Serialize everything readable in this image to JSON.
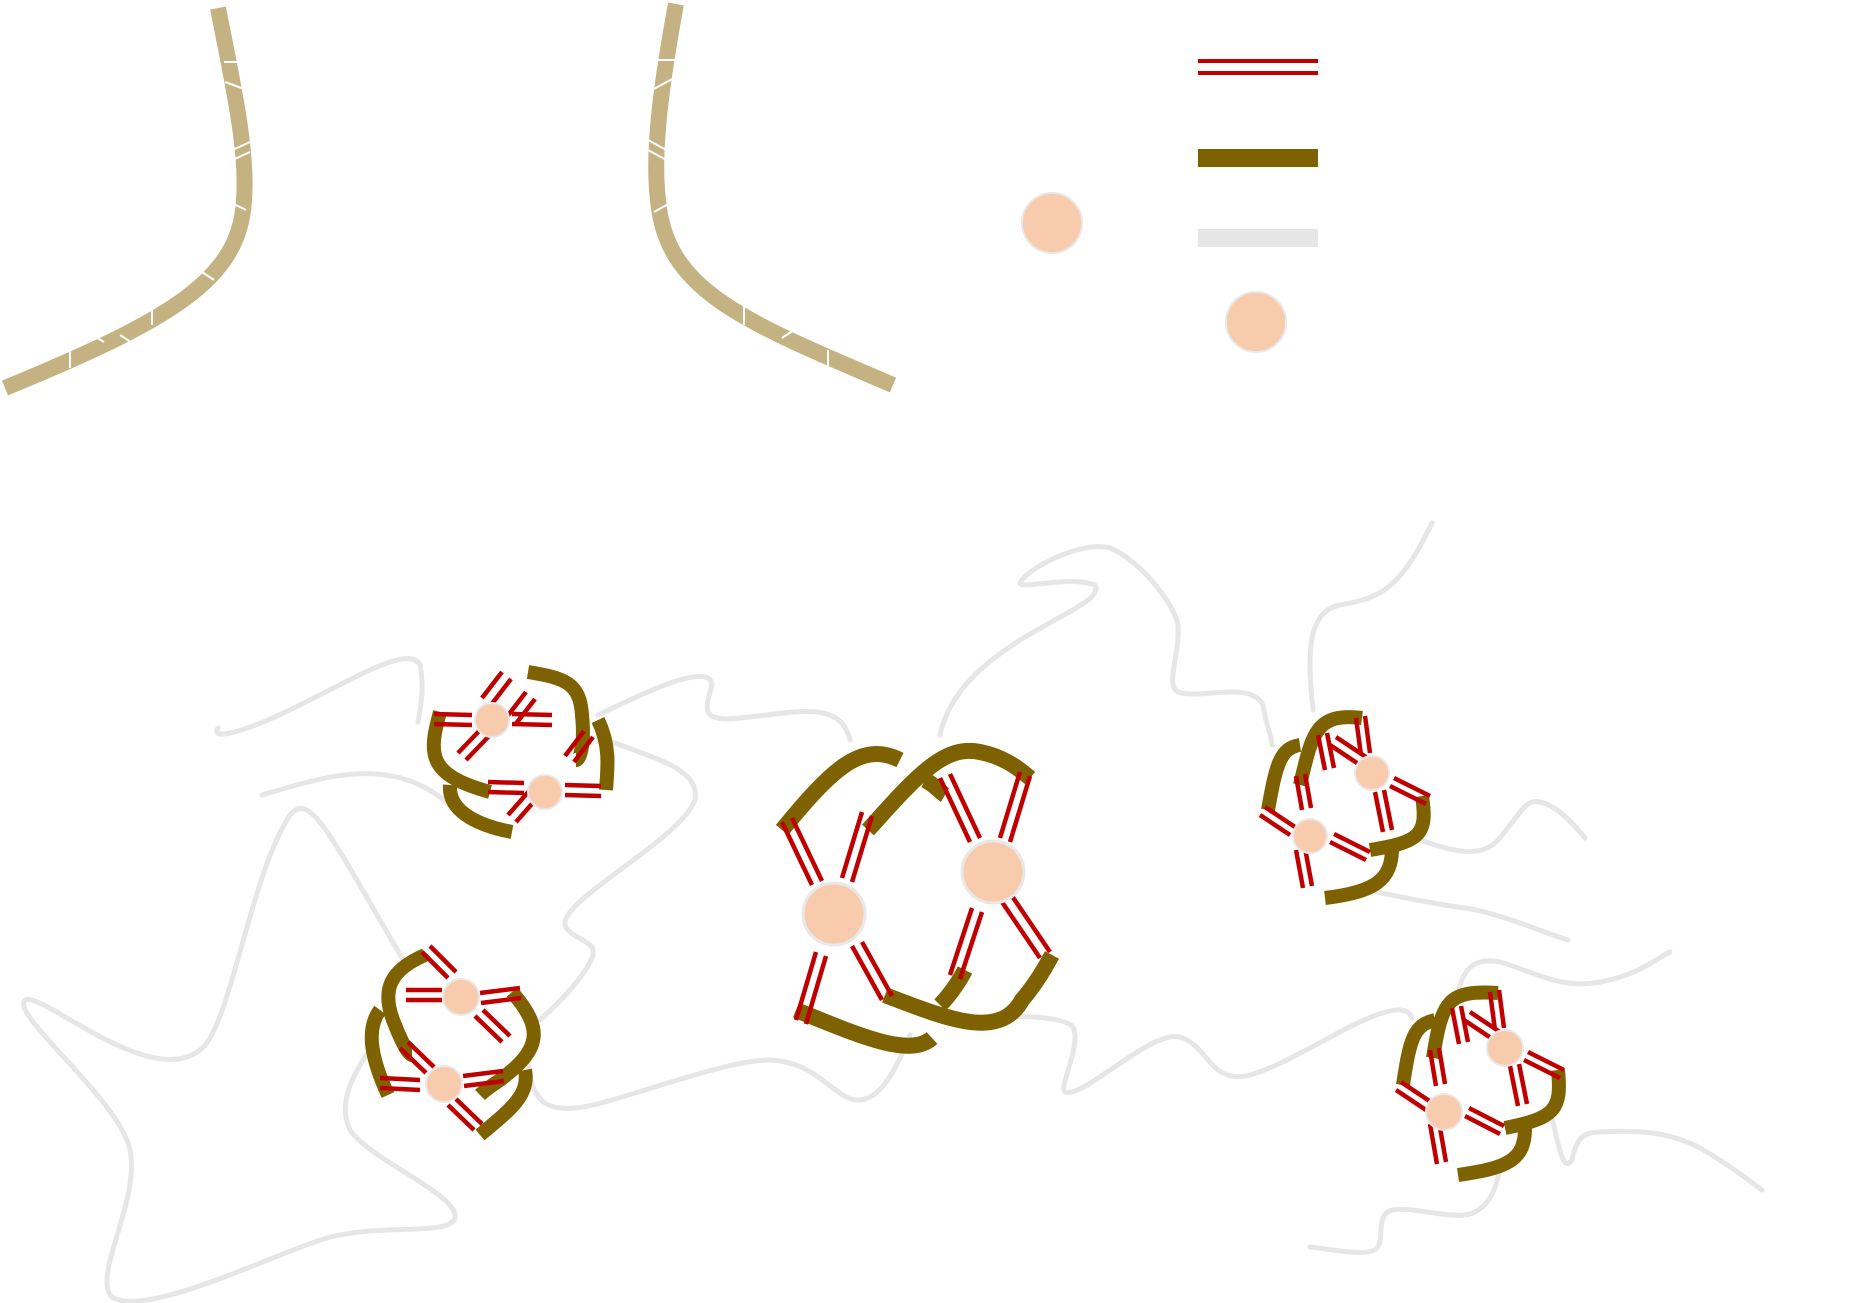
{
  "title": "",
  "colors": {
    "strand_backbone": "#c4b282",
    "strand_backbone_dark": "#7e6100",
    "hydrogen_bond": "#c00000",
    "cation": "#f7cbac",
    "cation_outline": "#e8e8e8",
    "linker": "#e6e6e6",
    "background": "#ffffff"
  },
  "legend": {
    "items": [
      {
        "icon": "double-red-line-icon",
        "label": ""
      },
      {
        "icon": "dark-backbone-bar-icon",
        "label": ""
      },
      {
        "icon": "light-gray-linker-icon",
        "label": ""
      },
      {
        "icon": "cation-sphere-icon",
        "label": ""
      }
    ]
  },
  "components": {
    "top_left_strand": "guanine-rich-strand",
    "top_middle_strand": "guanine-rich-strand",
    "free_cation": "cation-sphere",
    "quadruplex_count": 5,
    "central_quadruplex": "large-two-tetrad-quadruplex"
  }
}
